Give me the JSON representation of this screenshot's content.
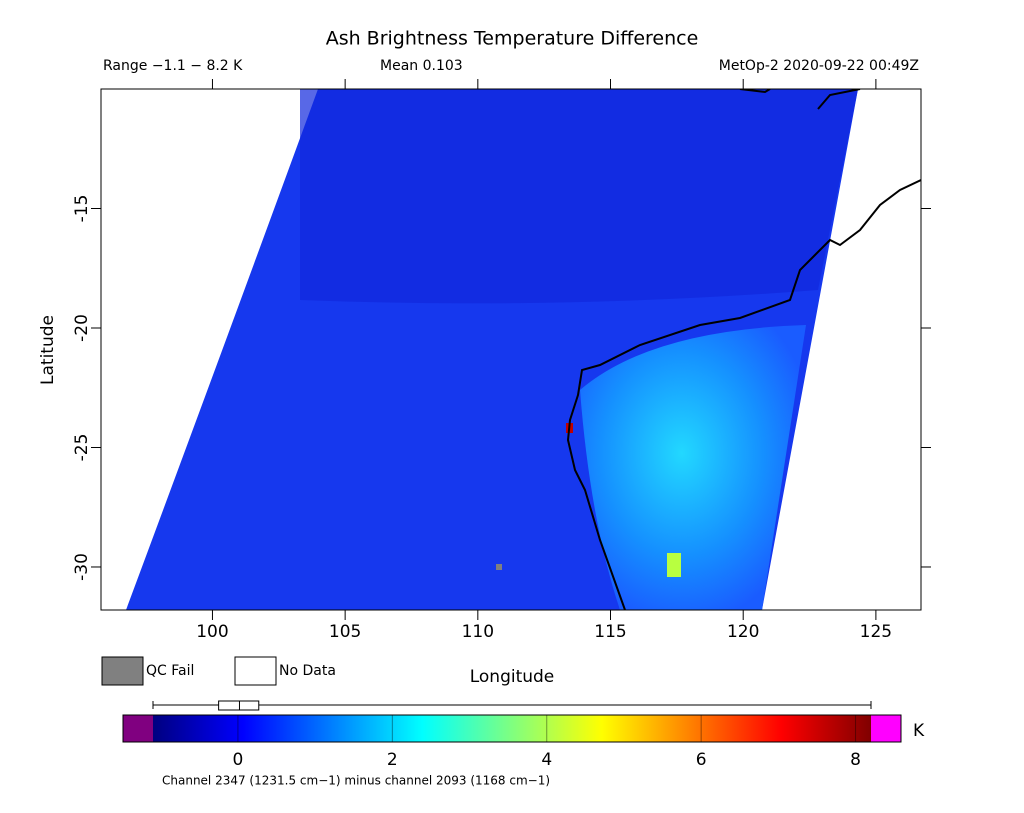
{
  "header": {
    "title": "Ash Brightness Temperature Difference",
    "range": "Range −1.1 − 8.2 K",
    "mean": "Mean 0.103",
    "satellite": "MetOp-2 2020-09-22 00:49Z"
  },
  "map": {
    "xlabel": "Longitude",
    "ylabel": "Latitude",
    "xlim": [
      95.8,
      126.7
    ],
    "ylim": [
      -31.8,
      -10
    ],
    "xticks": [
      100,
      105,
      110,
      115,
      120,
      125
    ],
    "yticks": [
      -15,
      -20,
      -25,
      -30
    ]
  },
  "legend": {
    "qc_fail": "QC Fail",
    "no_data": "No Data"
  },
  "colorbar": {
    "unit": "K",
    "lim": [
      -1.1,
      8.2
    ],
    "ticks": [
      0,
      2,
      4,
      6,
      8
    ],
    "caption": "Channel 2347 (1231.5 cm−1) minus channel 2093 (1168 cm−1)",
    "stats": {
      "min": -1.1,
      "q1": -0.25,
      "median": 0.02,
      "q3": 0.27,
      "max": 8.2
    }
  }
}
